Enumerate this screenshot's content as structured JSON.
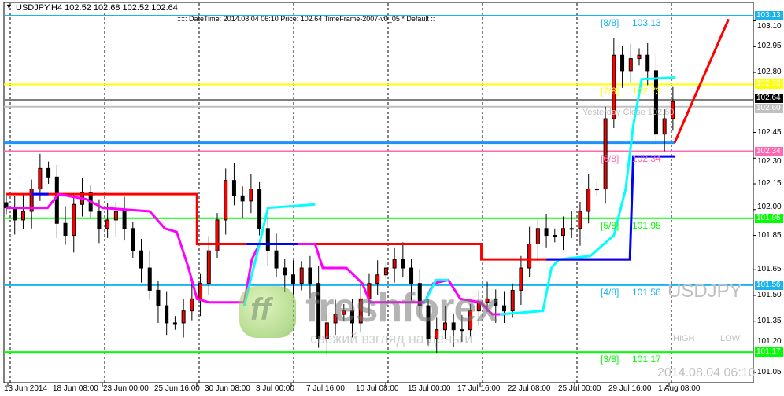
{
  "header": {
    "symbol_line": "USDJPY,H4  102.52 102.68 102.52 102.64",
    "info_line": ":::::  DateTime: 2014.08.04 06:10    Price: 102.64    TimeFrame-2007-v0_05      *    Default   ::"
  },
  "overlay": {
    "yesterday_close": "Yesterday Close 102.60",
    "symbol": "USDJPY",
    "high_label": "HIGH",
    "low_label": "LOW",
    "datetime": "2014.08.04 06:10"
  },
  "watermark": {
    "logo": "ff",
    "brand": "freshforex",
    "slogan": "свежий взгляд на деньги"
  },
  "murrey_levels": [
    {
      "label": "[8/8]",
      "value": "103.13",
      "color": "#1ab3f0"
    },
    {
      "label": "[7/8]",
      "value": "102.73",
      "color": "#ffff00"
    },
    {
      "label": "[6/8]",
      "value": "102.34",
      "color": "#ff69b4"
    },
    {
      "label": "[5/8]",
      "value": "101.95",
      "color": "#00ff00"
    },
    {
      "label": "[4/8]",
      "value": "101.56",
      "color": "#1ab3f0"
    },
    {
      "label": "[3/8]",
      "value": "101.17",
      "color": "#00ff00"
    }
  ],
  "price_axis": [
    "103.10",
    "102.95",
    "102.80",
    "102.45",
    "102.30",
    "102.15",
    "102.00",
    "101.85",
    "101.65",
    "101.50",
    "101.35",
    "101.20",
    "101.05"
  ],
  "price_tags": [
    {
      "value": "103.13",
      "bg": "#1ab3f0",
      "fg": "#ffffff"
    },
    {
      "value": "102.73",
      "bg": "#ffff00",
      "fg": "#ffffff"
    },
    {
      "value": "102.64",
      "bg": "#000000",
      "fg": "#ffffff"
    },
    {
      "value": "102.60",
      "bg": "#c0c0c0",
      "fg": "#ffffff"
    },
    {
      "value": "102.34",
      "bg": "#ff69b4",
      "fg": "#ffffff"
    },
    {
      "value": "101.95",
      "bg": "#00ff00",
      "fg": "#ffffff"
    },
    {
      "value": "101.56",
      "bg": "#1ab3f0",
      "fg": "#ffffff"
    },
    {
      "value": "101.17",
      "bg": "#00ff00",
      "fg": "#ffffff"
    }
  ],
  "time_axis": [
    "13 Jun 2014",
    "18 Jun 08:00",
    "23 Jun 00:00",
    "25 Jun 16:00",
    "30 Jun 08:00",
    "3 Jul 00:00",
    "7 Jul 16:00",
    "10 Jul 08:00",
    "15 Jul 00:00",
    "17 Jul 16:00",
    "22 Jul 08:00",
    "25 Jul 00:00",
    "29 Jul 16:00",
    "1 Aug 08:00"
  ],
  "chart_data": {
    "type": "candlestick",
    "symbol": "USDJPY",
    "timeframe": "H4",
    "ylim": [
      101.0,
      103.2
    ],
    "closes": [
      102.01,
      101.94,
      101.99,
      102.12,
      102.24,
      102.19,
      101.92,
      101.85,
      102.03,
      102.1,
      101.99,
      101.89,
      101.94,
      101.99,
      101.89,
      101.76,
      101.66,
      101.53,
      101.44,
      101.34,
      101.34,
      101.41,
      101.48,
      101.57,
      101.76,
      101.94,
      102.17,
      102.08,
      102.05,
      102.12,
      101.89,
      101.76,
      101.66,
      101.62,
      101.57,
      101.66,
      101.57,
      101.25,
      101.34,
      101.39,
      101.41,
      101.34,
      101.48,
      101.57,
      101.62,
      101.66,
      101.71,
      101.66,
      101.57,
      101.44,
      101.25,
      101.3,
      101.34,
      101.3,
      101.3,
      101.41,
      101.46,
      101.48,
      101.44,
      101.41,
      101.53,
      101.66,
      101.8,
      101.89,
      101.85,
      101.85,
      101.89,
      101.89,
      101.99,
      102.12,
      102.12,
      102.53,
      102.9,
      102.81,
      102.88,
      102.9,
      102.81,
      102.44,
      102.53,
      102.63
    ],
    "horizontal_lines": [
      {
        "price": 103.13,
        "color": "#1ab3f0"
      },
      {
        "price": 102.73,
        "color": "#ffff00"
      },
      {
        "price": 102.64,
        "color": "#808080"
      },
      {
        "price": 102.6,
        "color": "#c0c0c0"
      },
      {
        "price": 102.39,
        "color": "#1e90ff"
      },
      {
        "price": 102.34,
        "color": "#ff69b4"
      },
      {
        "price": 101.95,
        "color": "#00ff00"
      },
      {
        "price": 101.56,
        "color": "#1ab3f0"
      },
      {
        "price": 101.17,
        "color": "#00ff00"
      }
    ],
    "indicator_lines": [
      {
        "color": "#ff0000",
        "segments": [
          [
            [
              0,
              102.09
            ],
            [
              22.6,
              102.09
            ],
            [
              22.6,
              101.8
            ],
            [
              56.3,
              101.8
            ],
            [
              56.3,
              101.71
            ],
            [
              74,
              101.71
            ]
          ],
          [
            [
              79.2,
              102.39
            ],
            [
              85.6,
              103.11
            ]
          ]
        ]
      },
      {
        "color": "#ff00ff",
        "segments": [
          [
            [
              0,
              102.01
            ],
            [
              4.9,
              102.01
            ],
            [
              6.2,
              102.09
            ],
            [
              9.5,
              102.06
            ],
            [
              11.4,
              102.01
            ],
            [
              17,
              101.99
            ],
            [
              18.8,
              101.89
            ],
            [
              20.2,
              101.87
            ],
            [
              21.6,
              101.66
            ],
            [
              22.6,
              101.48
            ],
            [
              24,
              101.46
            ],
            [
              28.2,
              101.46
            ],
            [
              29.1,
              101.71
            ],
            [
              30,
              101.8
            ],
            [
              36.6,
              101.8
            ],
            [
              37.5,
              101.66
            ],
            [
              40.3,
              101.66
            ],
            [
              42.2,
              101.57
            ],
            [
              43.1,
              101.46
            ],
            [
              49.6,
              101.46
            ],
            [
              50.6,
              101.57
            ],
            [
              52.4,
              101.59
            ],
            [
              53.8,
              101.48
            ],
            [
              56.2,
              101.46
            ],
            [
              57.6,
              101.39
            ],
            [
              59,
              101.39
            ]
          ]
        ]
      },
      {
        "color": "#00ffff",
        "segments": [
          [
            [
              28.2,
              101.44
            ],
            [
              29.1,
              101.62
            ],
            [
              30,
              101.8
            ],
            [
              31,
              102.01
            ],
            [
              36.6,
              102.03
            ]
          ],
          [
            [
              49.6,
              101.46
            ],
            [
              50.9,
              101.59
            ],
            [
              52.4,
              101.59
            ]
          ],
          [
            [
              58.5,
              101.39
            ],
            [
              63.6,
              101.41
            ],
            [
              64.6,
              101.66
            ],
            [
              65.5,
              101.71
            ],
            [
              69.2,
              101.73
            ],
            [
              72,
              101.85
            ],
            [
              73.4,
              102.12
            ],
            [
              74.3,
              102.49
            ],
            [
              75.3,
              102.76
            ],
            [
              79.2,
              102.77
            ]
          ]
        ]
      },
      {
        "color": "#0000ff",
        "segments": [
          [
            [
              3,
              102.09
            ],
            [
              5,
              102.09
            ]
          ],
          [
            [
              28.5,
              101.8
            ],
            [
              34.5,
              101.8
            ]
          ],
          [
            [
              64,
              101.71
            ],
            [
              73.9,
              101.71
            ],
            [
              74.3,
              102.31
            ],
            [
              79.2,
              102.31
            ]
          ]
        ]
      }
    ]
  }
}
